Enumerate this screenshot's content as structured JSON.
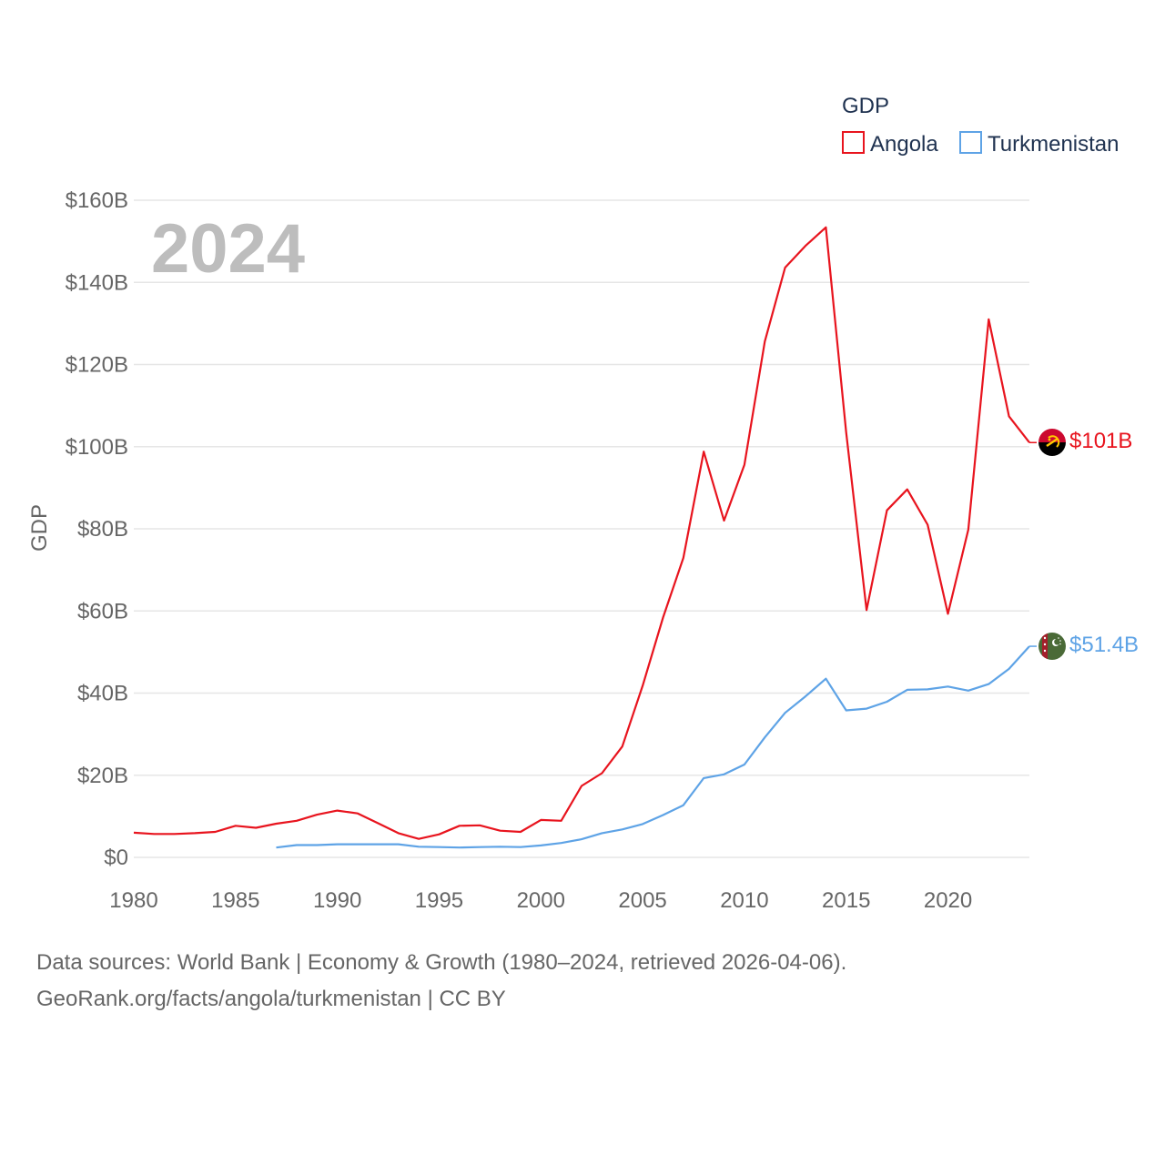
{
  "chart_data": {
    "type": "line",
    "title": "GDP",
    "ylabel": "GDP",
    "xlabel": "",
    "year_label": "2024",
    "xlim": [
      1980,
      2024
    ],
    "ylim": [
      0,
      160
    ],
    "y_unit": "B USD",
    "x_ticks": [
      1980,
      1985,
      1990,
      1995,
      2000,
      2005,
      2010,
      2015,
      2020
    ],
    "x_tick_labels": [
      "1980",
      "1985",
      "1990",
      "1995",
      "2000",
      "2005",
      "2010",
      "2015",
      "2020"
    ],
    "y_ticks": [
      0,
      20,
      40,
      60,
      80,
      100,
      120,
      140,
      160
    ],
    "y_tick_labels": [
      "$0",
      "$20B",
      "$40B",
      "$60B",
      "$80B",
      "$100B",
      "$120B",
      "$140B",
      "$160B"
    ],
    "grid": true,
    "legend": {
      "title": "GDP",
      "position": "top-right"
    },
    "series": [
      {
        "name": "Angola",
        "color": "#e8141e",
        "end_label": "$101B",
        "flag": "angola-flag-icon",
        "x": [
          1980,
          1981,
          1982,
          1983,
          1984,
          1985,
          1986,
          1987,
          1988,
          1989,
          1990,
          1991,
          1992,
          1993,
          1994,
          1995,
          1996,
          1997,
          1998,
          1999,
          2000,
          2001,
          2002,
          2003,
          2004,
          2005,
          2006,
          2007,
          2008,
          2009,
          2010,
          2011,
          2012,
          2013,
          2014,
          2015,
          2016,
          2017,
          2018,
          2019,
          2020,
          2021,
          2022,
          2023,
          2024
        ],
        "values": [
          6.0,
          5.7,
          5.7,
          5.9,
          6.2,
          7.7,
          7.2,
          8.2,
          8.9,
          10.4,
          11.4,
          10.7,
          8.3,
          5.9,
          4.5,
          5.6,
          7.7,
          7.8,
          6.5,
          6.2,
          9.1,
          8.9,
          17.4,
          20.5,
          27.0,
          41.8,
          58.4,
          72.9,
          98.8,
          82.0,
          95.6,
          125.6,
          143.6,
          148.9,
          153.4,
          103.5,
          60.2,
          84.5,
          89.6,
          81.0,
          59.3,
          79.8,
          131.0,
          107.4,
          101.0
        ]
      },
      {
        "name": "Turkmenistan",
        "color": "#5ea3e6",
        "end_label": "$51.4B",
        "flag": "turkmenistan-flag-icon",
        "x": [
          1987,
          1988,
          1989,
          1990,
          1991,
          1992,
          1993,
          1994,
          1995,
          1996,
          1997,
          1998,
          1999,
          2000,
          2001,
          2002,
          2003,
          2004,
          2005,
          2006,
          2007,
          2008,
          2009,
          2010,
          2011,
          2012,
          2013,
          2014,
          2015,
          2016,
          2017,
          2018,
          2019,
          2020,
          2021,
          2022,
          2023,
          2024
        ],
        "values": [
          2.4,
          3.0,
          3.0,
          3.2,
          3.2,
          3.2,
          3.2,
          2.6,
          2.5,
          2.4,
          2.5,
          2.6,
          2.5,
          2.9,
          3.5,
          4.4,
          5.9,
          6.8,
          8.1,
          10.3,
          12.7,
          19.3,
          20.2,
          22.6,
          29.2,
          35.2,
          39.2,
          43.5,
          35.8,
          36.2,
          37.9,
          40.8,
          40.9,
          41.6,
          40.6,
          42.2,
          45.9,
          51.4
        ]
      }
    ]
  },
  "footer": {
    "line1": "Data sources: World Bank | Economy & Growth (1980–2024, retrieved 2026-04-06).",
    "line2": "GeoRank.org/facts/angola/turkmenistan | CC BY"
  }
}
